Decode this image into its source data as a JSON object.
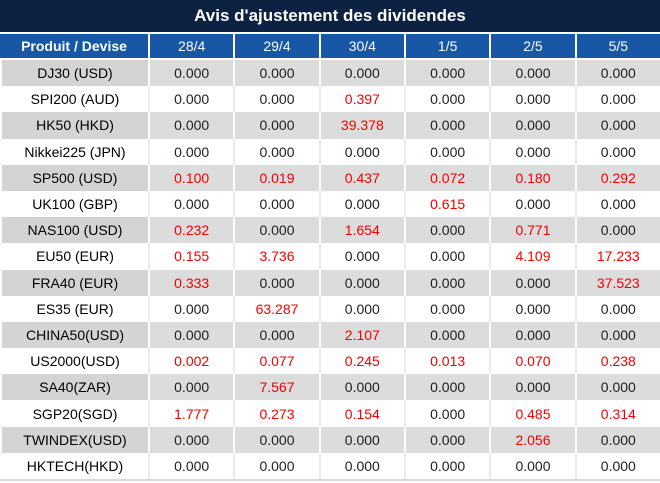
{
  "title": "Avis d'ajustement des dividendes",
  "table": {
    "header": [
      "Produit / Devise",
      "28/4",
      "29/4",
      "30/4",
      "1/5",
      "2/5",
      "5/5"
    ],
    "rows": [
      {
        "product": "DJ30 (USD)",
        "values": [
          "0.000",
          "0.000",
          "0.000",
          "0.000",
          "0.000",
          "0.000"
        ]
      },
      {
        "product": "SPI200 (AUD)",
        "values": [
          "0.000",
          "0.000",
          "0.397",
          "0.000",
          "0.000",
          "0.000"
        ]
      },
      {
        "product": "HK50 (HKD)",
        "values": [
          "0.000",
          "0.000",
          "39.378",
          "0.000",
          "0.000",
          "0.000"
        ]
      },
      {
        "product": "Nikkei225 (JPN)",
        "values": [
          "0.000",
          "0.000",
          "0.000",
          "0.000",
          "0.000",
          "0.000"
        ]
      },
      {
        "product": "SP500 (USD)",
        "values": [
          "0.100",
          "0.019",
          "0.437",
          "0.072",
          "0.180",
          "0.292"
        ]
      },
      {
        "product": "UK100 (GBP)",
        "values": [
          "0.000",
          "0.000",
          "0.000",
          "0.615",
          "0.000",
          "0.000"
        ]
      },
      {
        "product": "NAS100 (USD)",
        "values": [
          "0.232",
          "0.000",
          "1.654",
          "0.000",
          "0.771",
          "0.000"
        ]
      },
      {
        "product": "EU50 (EUR)",
        "values": [
          "0.155",
          "3.736",
          "0.000",
          "0.000",
          "4.109",
          "17.233"
        ]
      },
      {
        "product": "FRA40 (EUR)",
        "values": [
          "0.333",
          "0.000",
          "0.000",
          "0.000",
          "0.000",
          "37.523"
        ]
      },
      {
        "product": "ES35 (EUR)",
        "values": [
          "0.000",
          "63.287",
          "0.000",
          "0.000",
          "0.000",
          "0.000"
        ]
      },
      {
        "product": "CHINA50(USD)",
        "values": [
          "0.000",
          "0.000",
          "2.107",
          "0.000",
          "0.000",
          "0.000"
        ]
      },
      {
        "product": "US2000(USD)",
        "values": [
          "0.002",
          "0.077",
          "0.245",
          "0.013",
          "0.070",
          "0.238"
        ]
      },
      {
        "product": "SA40(ZAR)",
        "values": [
          "0.000",
          "7.567",
          "0.000",
          "0.000",
          "0.000",
          "0.000"
        ]
      },
      {
        "product": "SGP20(SGD)",
        "values": [
          "1.777",
          "0.273",
          "0.154",
          "0.000",
          "0.485",
          "0.314"
        ]
      },
      {
        "product": "TWINDEX(USD)",
        "values": [
          "0.000",
          "0.000",
          "0.000",
          "0.000",
          "2.056",
          "0.000"
        ]
      },
      {
        "product": "HKTECH(HKD)",
        "values": [
          "0.000",
          "0.000",
          "0.000",
          "0.000",
          "0.000",
          "0.000"
        ]
      }
    ]
  },
  "colors": {
    "title_bg": "#0d2143",
    "header_bg": "#1857a6",
    "alt_row_bg": "#dcdcdc",
    "alt_row_first_col_bg": "#d4d4d4",
    "zero_value": "#212121",
    "nonzero_value": "#f40000"
  }
}
